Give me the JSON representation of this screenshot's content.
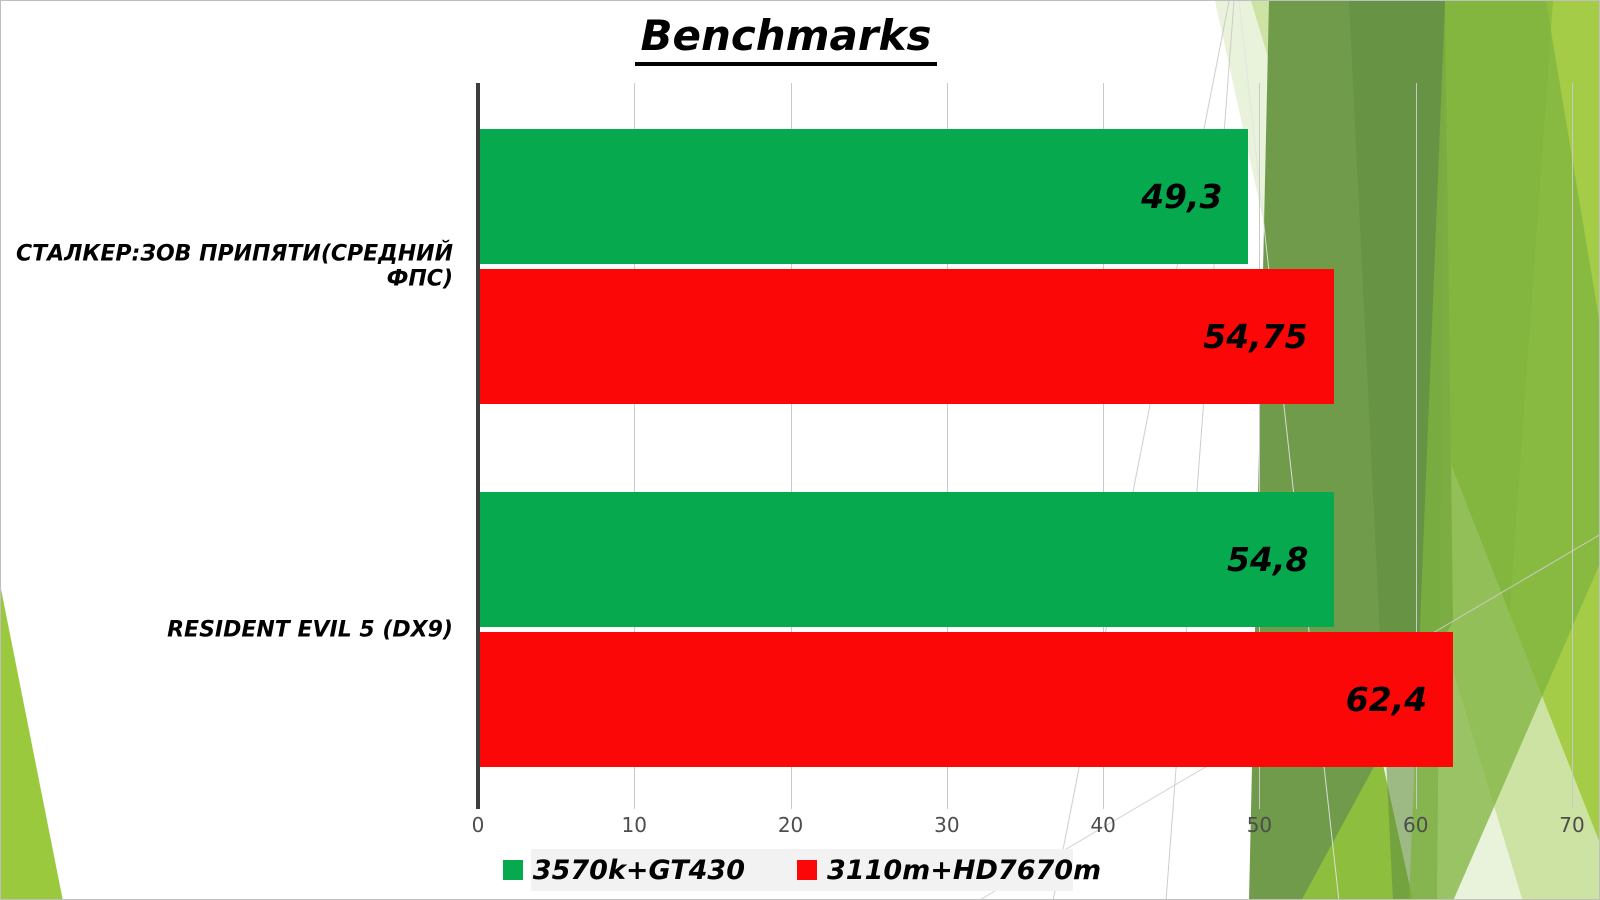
{
  "chart_data": {
    "type": "bar",
    "orientation": "horizontal",
    "title": "Benchmarks",
    "categories": [
      "СТАЛКЕР:ЗОВ ПРИПЯТИ(СРЕДНИЙ ФПС)",
      "RESIDENT EVIL 5 (DX9)"
    ],
    "series": [
      {
        "name": "3570k+GT430",
        "color": "#07A94F",
        "values": [
          49.3,
          54.8
        ],
        "value_labels": [
          "49,3",
          "54,8"
        ]
      },
      {
        "name": "3110m+HD7670m",
        "color": "#FB0707",
        "values": [
          54.75,
          62.4
        ],
        "value_labels": [
          "54,75",
          "62,4"
        ]
      }
    ],
    "xlim": [
      0,
      70
    ],
    "x_ticks": [
      0,
      10,
      20,
      30,
      40,
      50,
      60,
      70
    ],
    "grid": true,
    "legend_position": "bottom"
  }
}
